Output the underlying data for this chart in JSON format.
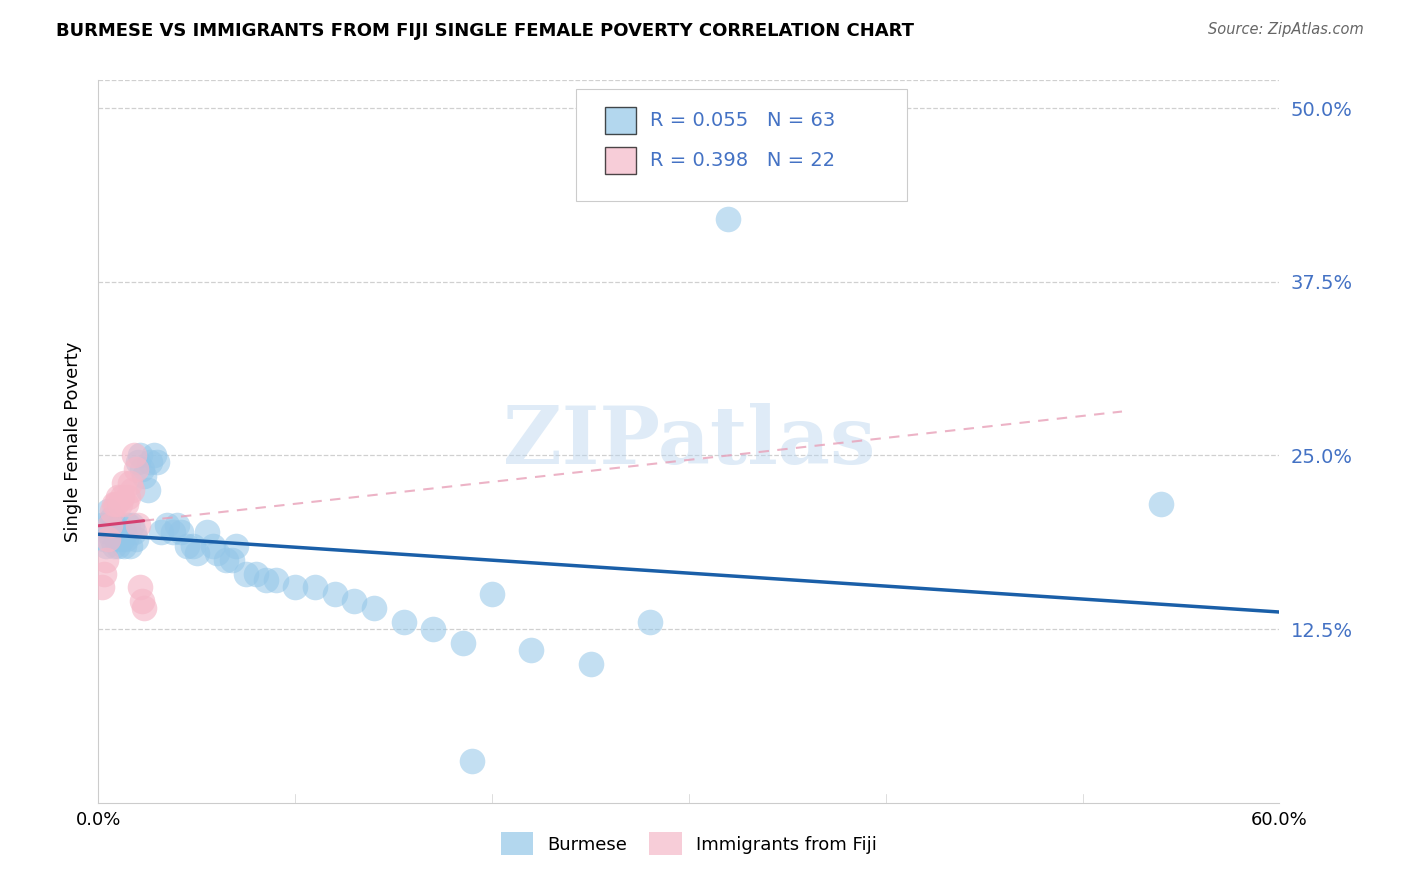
{
  "title": "BURMESE VS IMMIGRANTS FROM FIJI SINGLE FEMALE POVERTY CORRELATION CHART",
  "source": "Source: ZipAtlas.com",
  "ylabel": "Single Female Poverty",
  "legend1_R": "0.055",
  "legend1_N": "63",
  "legend2_R": "0.398",
  "legend2_N": "22",
  "blue_color": "#93c6e8",
  "pink_color": "#f5b8c8",
  "trendline_blue": "#1a5fa8",
  "trendline_pink": "#d44070",
  "trendline_pink_dash": "#e8a0b8",
  "watermark": "ZIPatlas",
  "axis_color": "#4472c4",
  "grid_color": "#d0d0d0",
  "burmese_x": [
    0.002,
    0.003,
    0.004,
    0.005,
    0.005,
    0.006,
    0.007,
    0.007,
    0.008,
    0.009,
    0.01,
    0.01,
    0.011,
    0.012,
    0.013,
    0.013,
    0.014,
    0.015,
    0.016,
    0.017,
    0.018,
    0.019,
    0.02,
    0.021,
    0.022,
    0.023,
    0.025,
    0.026,
    0.028,
    0.03,
    0.032,
    0.035,
    0.038,
    0.04,
    0.042,
    0.045,
    0.048,
    0.05,
    0.055,
    0.058,
    0.06,
    0.065,
    0.068,
    0.07,
    0.075,
    0.08,
    0.085,
    0.09,
    0.1,
    0.11,
    0.12,
    0.13,
    0.14,
    0.155,
    0.17,
    0.185,
    0.2,
    0.22,
    0.25,
    0.28,
    0.32,
    0.54,
    0.19
  ],
  "burmese_y": [
    0.2,
    0.19,
    0.185,
    0.21,
    0.195,
    0.2,
    0.205,
    0.19,
    0.185,
    0.195,
    0.2,
    0.185,
    0.195,
    0.19,
    0.185,
    0.195,
    0.19,
    0.2,
    0.185,
    0.2,
    0.195,
    0.19,
    0.245,
    0.25,
    0.24,
    0.235,
    0.225,
    0.245,
    0.25,
    0.245,
    0.195,
    0.2,
    0.195,
    0.2,
    0.195,
    0.185,
    0.185,
    0.18,
    0.195,
    0.185,
    0.18,
    0.175,
    0.175,
    0.185,
    0.165,
    0.165,
    0.16,
    0.16,
    0.155,
    0.155,
    0.15,
    0.145,
    0.14,
    0.13,
    0.125,
    0.115,
    0.15,
    0.11,
    0.1,
    0.13,
    0.42,
    0.215,
    0.03
  ],
  "fiji_x": [
    0.002,
    0.003,
    0.004,
    0.005,
    0.006,
    0.007,
    0.008,
    0.009,
    0.01,
    0.011,
    0.012,
    0.013,
    0.014,
    0.015,
    0.016,
    0.017,
    0.018,
    0.019,
    0.02,
    0.021,
    0.022,
    0.023
  ],
  "fiji_y": [
    0.155,
    0.165,
    0.175,
    0.19,
    0.2,
    0.21,
    0.215,
    0.215,
    0.22,
    0.215,
    0.22,
    0.23,
    0.215,
    0.22,
    0.23,
    0.225,
    0.25,
    0.24,
    0.2,
    0.155,
    0.145,
    0.14
  ],
  "xlim": [
    0.0,
    0.6
  ],
  "ylim": [
    0.0,
    0.52
  ],
  "ytick_vals": [
    0.125,
    0.25,
    0.375,
    0.5
  ],
  "ytick_labels": [
    "12.5%",
    "25.0%",
    "37.5%",
    "50.0%"
  ]
}
